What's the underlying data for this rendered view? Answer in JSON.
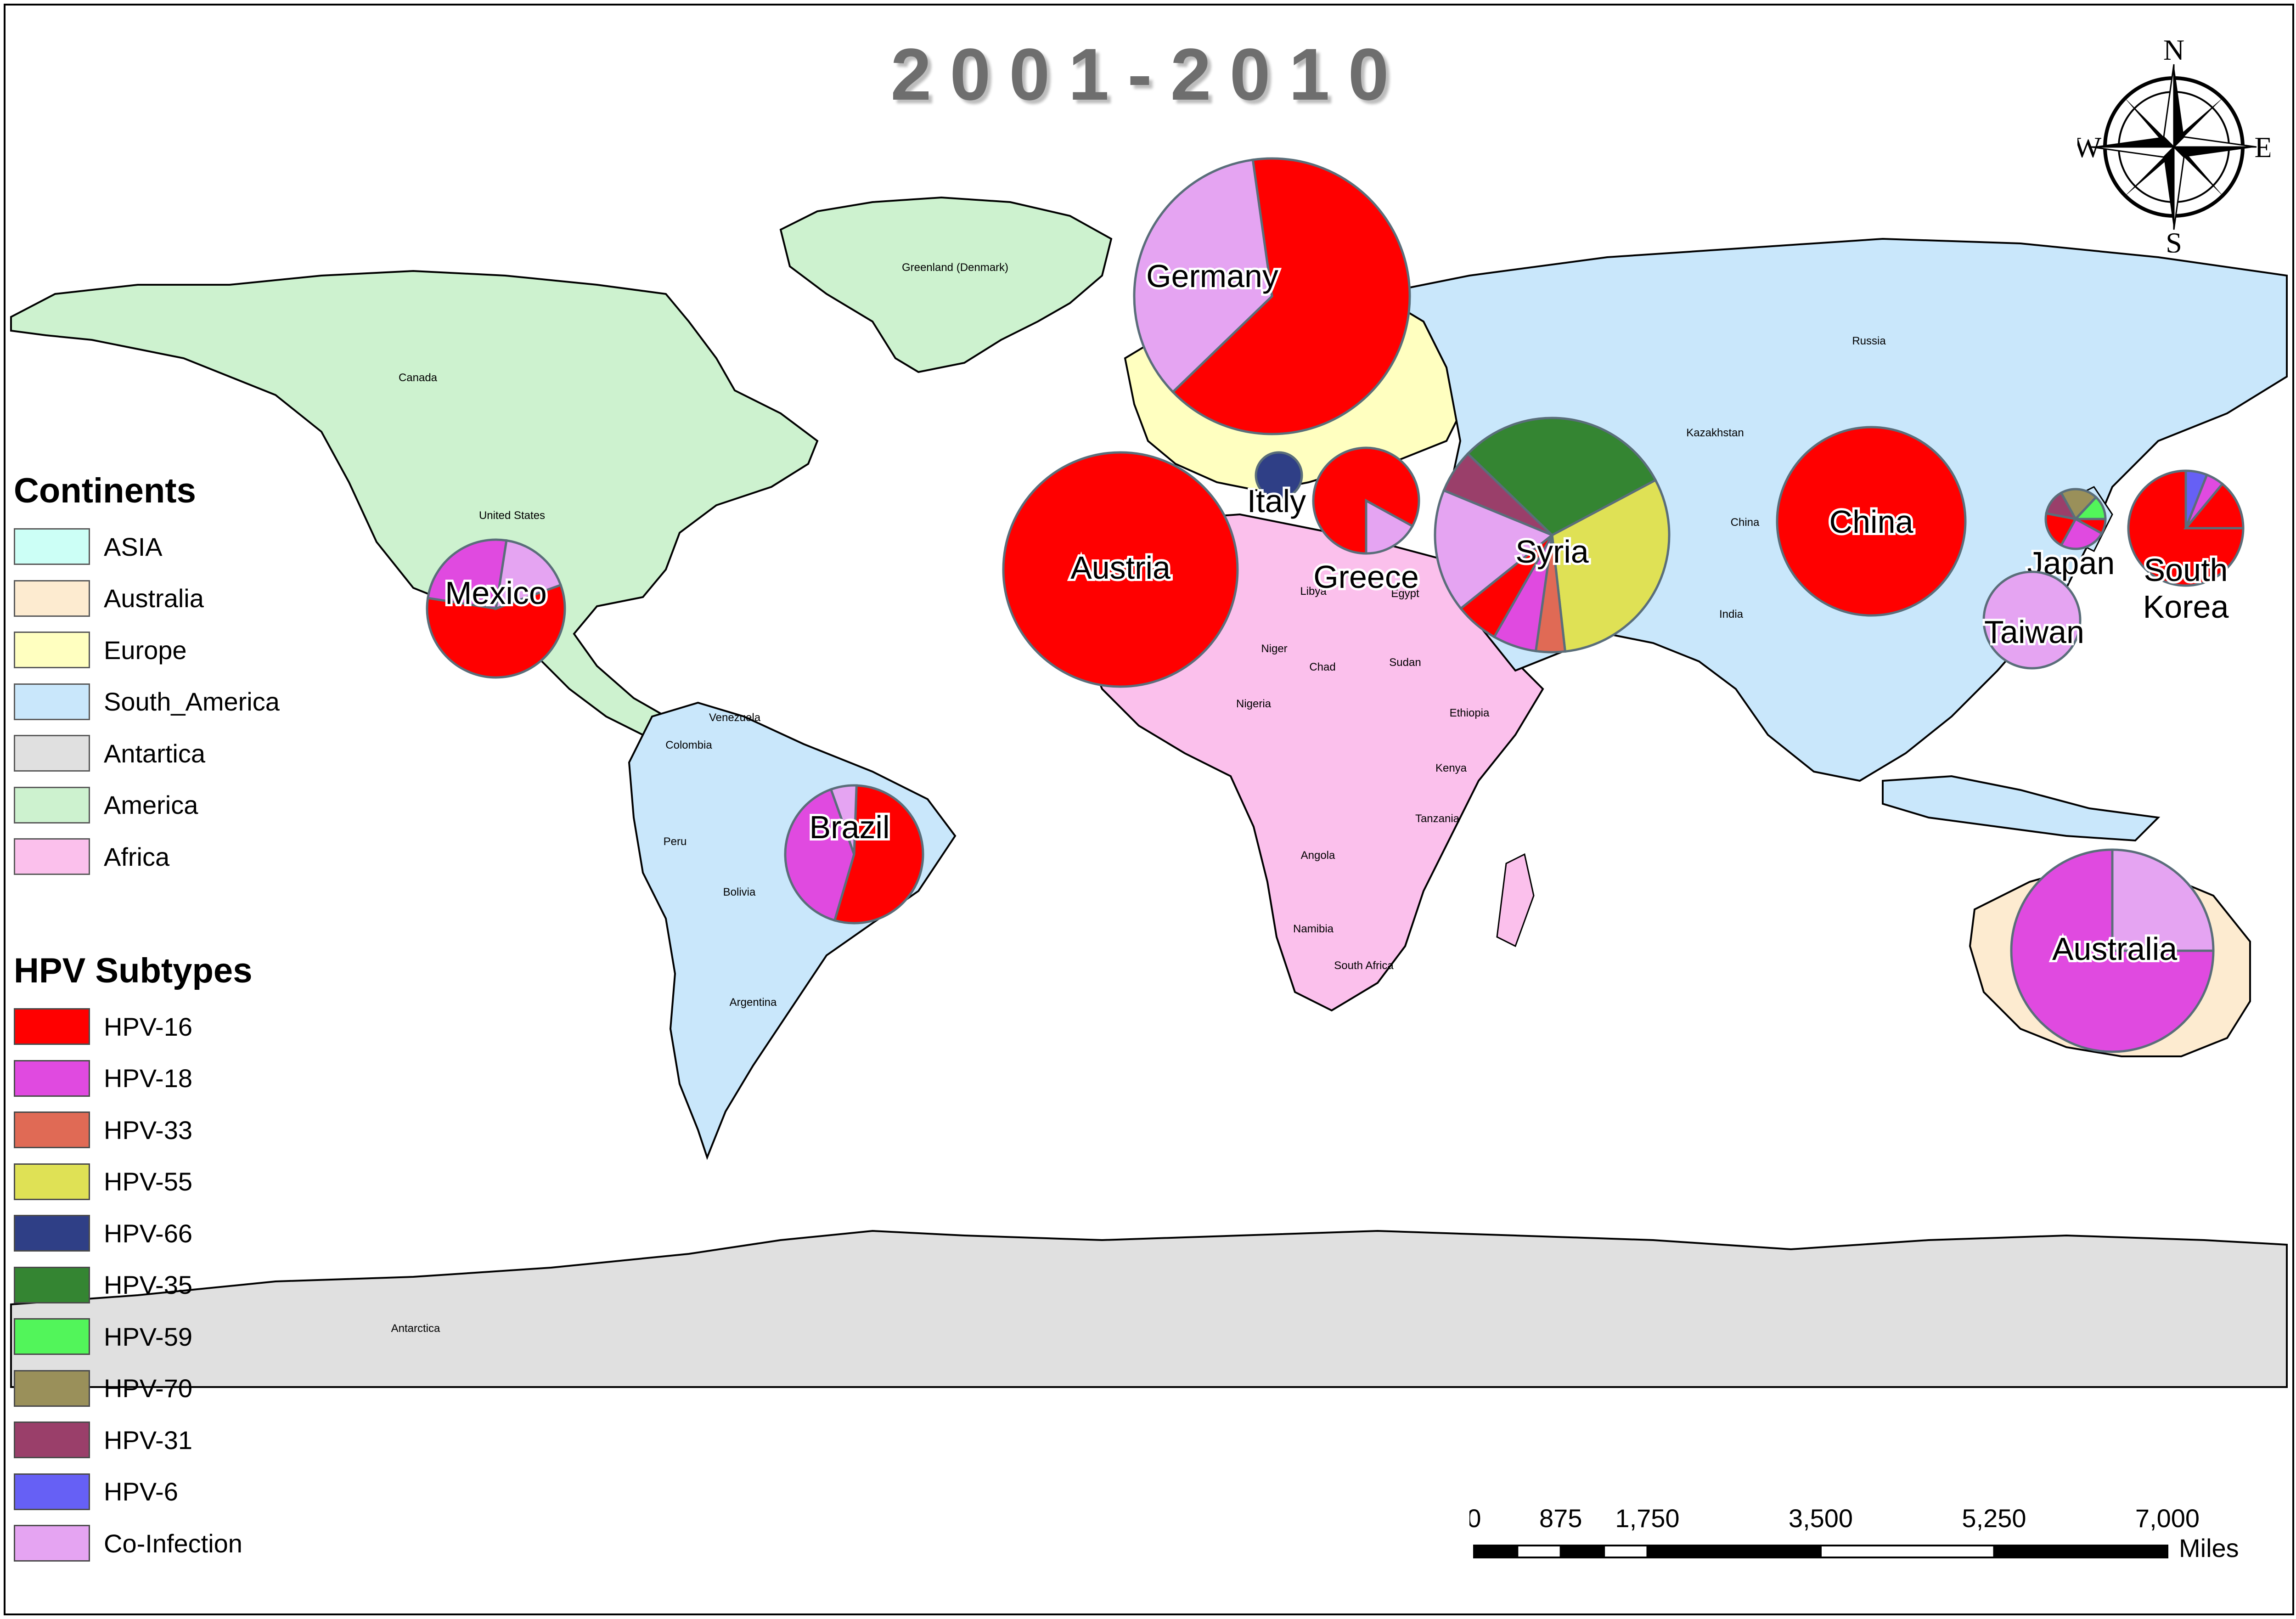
{
  "title": "2001-2010",
  "compass": {
    "n": "N",
    "s": "S",
    "e": "E",
    "w": "W"
  },
  "continents_legend": {
    "heading": "Continents",
    "items": [
      {
        "label": "ASIA",
        "color": "#ccfff6"
      },
      {
        "label": "Australia",
        "color": "#fdebd0"
      },
      {
        "label": "Europe",
        "color": "#ffffc0"
      },
      {
        "label": "South_America",
        "color": "#c9e7fb"
      },
      {
        "label": "Antartica",
        "color": "#e0e0e0"
      },
      {
        "label": "America",
        "color": "#cdf2cf"
      },
      {
        "label": "Africa",
        "color": "#fbc0ec"
      }
    ]
  },
  "hpv_legend": {
    "heading": "HPV Subtypes",
    "items": [
      {
        "key": "hpv16",
        "label": "HPV-16",
        "color": "#ff0000"
      },
      {
        "key": "hpv18",
        "label": "HPV-18",
        "color": "#e04ae0"
      },
      {
        "key": "hpv33",
        "label": "HPV-33",
        "color": "#e06a55"
      },
      {
        "key": "hpv55",
        "label": "HPV-55",
        "color": "#dfe155"
      },
      {
        "key": "hpv66",
        "label": "HPV-66",
        "color": "#2f3f86"
      },
      {
        "key": "hpv35",
        "label": "HPV-35",
        "color": "#348532"
      },
      {
        "key": "hpv59",
        "label": "HPV-59",
        "color": "#52f55a"
      },
      {
        "key": "hpv70",
        "label": "HPV-70",
        "color": "#9a905a"
      },
      {
        "key": "hpv31",
        "label": "HPV-31",
        "color": "#9a3f6a"
      },
      {
        "key": "hpv6",
        "label": "HPV-6",
        "color": "#6660f5"
      },
      {
        "key": "coinf",
        "label": "Co-Infection",
        "color": "#e5a4f2"
      }
    ]
  },
  "map_labels": {
    "greenland": "Greenland (Denmark)",
    "canada": "Canada",
    "us": "United States",
    "russia": "Russia",
    "kazakhstan": "Kazakhstan",
    "china_small": "China",
    "india": "India",
    "libya": "Libya",
    "egypt": "Egypt",
    "niger": "Niger",
    "chad": "Chad",
    "sudan": "Sudan",
    "nigeria": "Nigeria",
    "ethiopia": "Ethiopia",
    "kenya": "Kenya",
    "tanzania": "Tanzania",
    "angola": "Angola",
    "namibia": "Namibia",
    "south_africa": "South Africa",
    "venezuela": "Venezuela",
    "colombia": "Colombia",
    "peru": "Peru",
    "bolivia": "Bolivia",
    "argentina": "Argentina",
    "antarctica": "Antarctica"
  },
  "scale_bar": {
    "ticks": [
      "0",
      "875",
      "1,750",
      "3,500",
      "5,250",
      "7,000"
    ],
    "tick_values": [
      0,
      875,
      1750,
      3500,
      5250,
      7000
    ],
    "unit": "Miles"
  },
  "pies": [
    {
      "name": "Germany",
      "label": "Germany",
      "slices": [
        {
          "key": "hpv16",
          "value": 65
        },
        {
          "key": "coinf",
          "value": 35
        }
      ]
    },
    {
      "name": "Austria",
      "label": "Austria",
      "slices": [
        {
          "key": "hpv16",
          "value": 100
        }
      ]
    },
    {
      "name": "Italy",
      "label": "Italy",
      "slices": [
        {
          "key": "hpv66",
          "value": 100
        }
      ]
    },
    {
      "name": "Greece",
      "label": "Greece",
      "slices": [
        {
          "key": "hpv16",
          "value": 83
        },
        {
          "key": "coinf",
          "value": 17
        }
      ]
    },
    {
      "name": "Syria",
      "label": "Syria",
      "slices": [
        {
          "key": "hpv55",
          "value": 31
        },
        {
          "key": "hpv33",
          "value": 4
        },
        {
          "key": "hpv18",
          "value": 6
        },
        {
          "key": "hpv16",
          "value": 6
        },
        {
          "key": "coinf",
          "value": 17
        },
        {
          "key": "hpv31",
          "value": 6
        },
        {
          "key": "hpv35",
          "value": 30
        }
      ]
    },
    {
      "name": "China",
      "label": "China",
      "slices": [
        {
          "key": "hpv16",
          "value": 100
        }
      ]
    },
    {
      "name": "Japan",
      "label": "Japan",
      "slices": [
        {
          "key": "hpv16",
          "value": 8
        },
        {
          "key": "hpv18",
          "value": 25
        },
        {
          "key": "hpv16",
          "value": 20
        },
        {
          "key": "hpv31",
          "value": 14
        },
        {
          "key": "hpv70",
          "value": 20
        },
        {
          "key": "hpv59",
          "value": 13
        }
      ]
    },
    {
      "name": "South Korea",
      "label": "South Korea",
      "slices": [
        {
          "key": "hpv16",
          "value": 75
        },
        {
          "key": "hpv6",
          "value": 6
        },
        {
          "key": "hpv18",
          "value": 5
        },
        {
          "key": "hpv16",
          "value": 14
        }
      ]
    },
    {
      "name": "Taiwan",
      "label": "Taiwan",
      "slices": [
        {
          "key": "coinf",
          "value": 100
        }
      ]
    },
    {
      "name": "Mexico",
      "label": "Mexico",
      "slices": [
        {
          "key": "hpv16",
          "value": 58
        },
        {
          "key": "hpv18",
          "value": 25
        },
        {
          "key": "coinf",
          "value": 17
        }
      ]
    },
    {
      "name": "Brazil",
      "label": "Brazil",
      "slices": [
        {
          "key": "hpv16",
          "value": 54
        },
        {
          "key": "hpv18",
          "value": 40
        },
        {
          "key": "coinf",
          "value": 6
        }
      ]
    },
    {
      "name": "Australia",
      "label": "Australia",
      "slices": [
        {
          "key": "hpv18",
          "value": 75
        },
        {
          "key": "coinf",
          "value": 25
        }
      ]
    }
  ]
}
